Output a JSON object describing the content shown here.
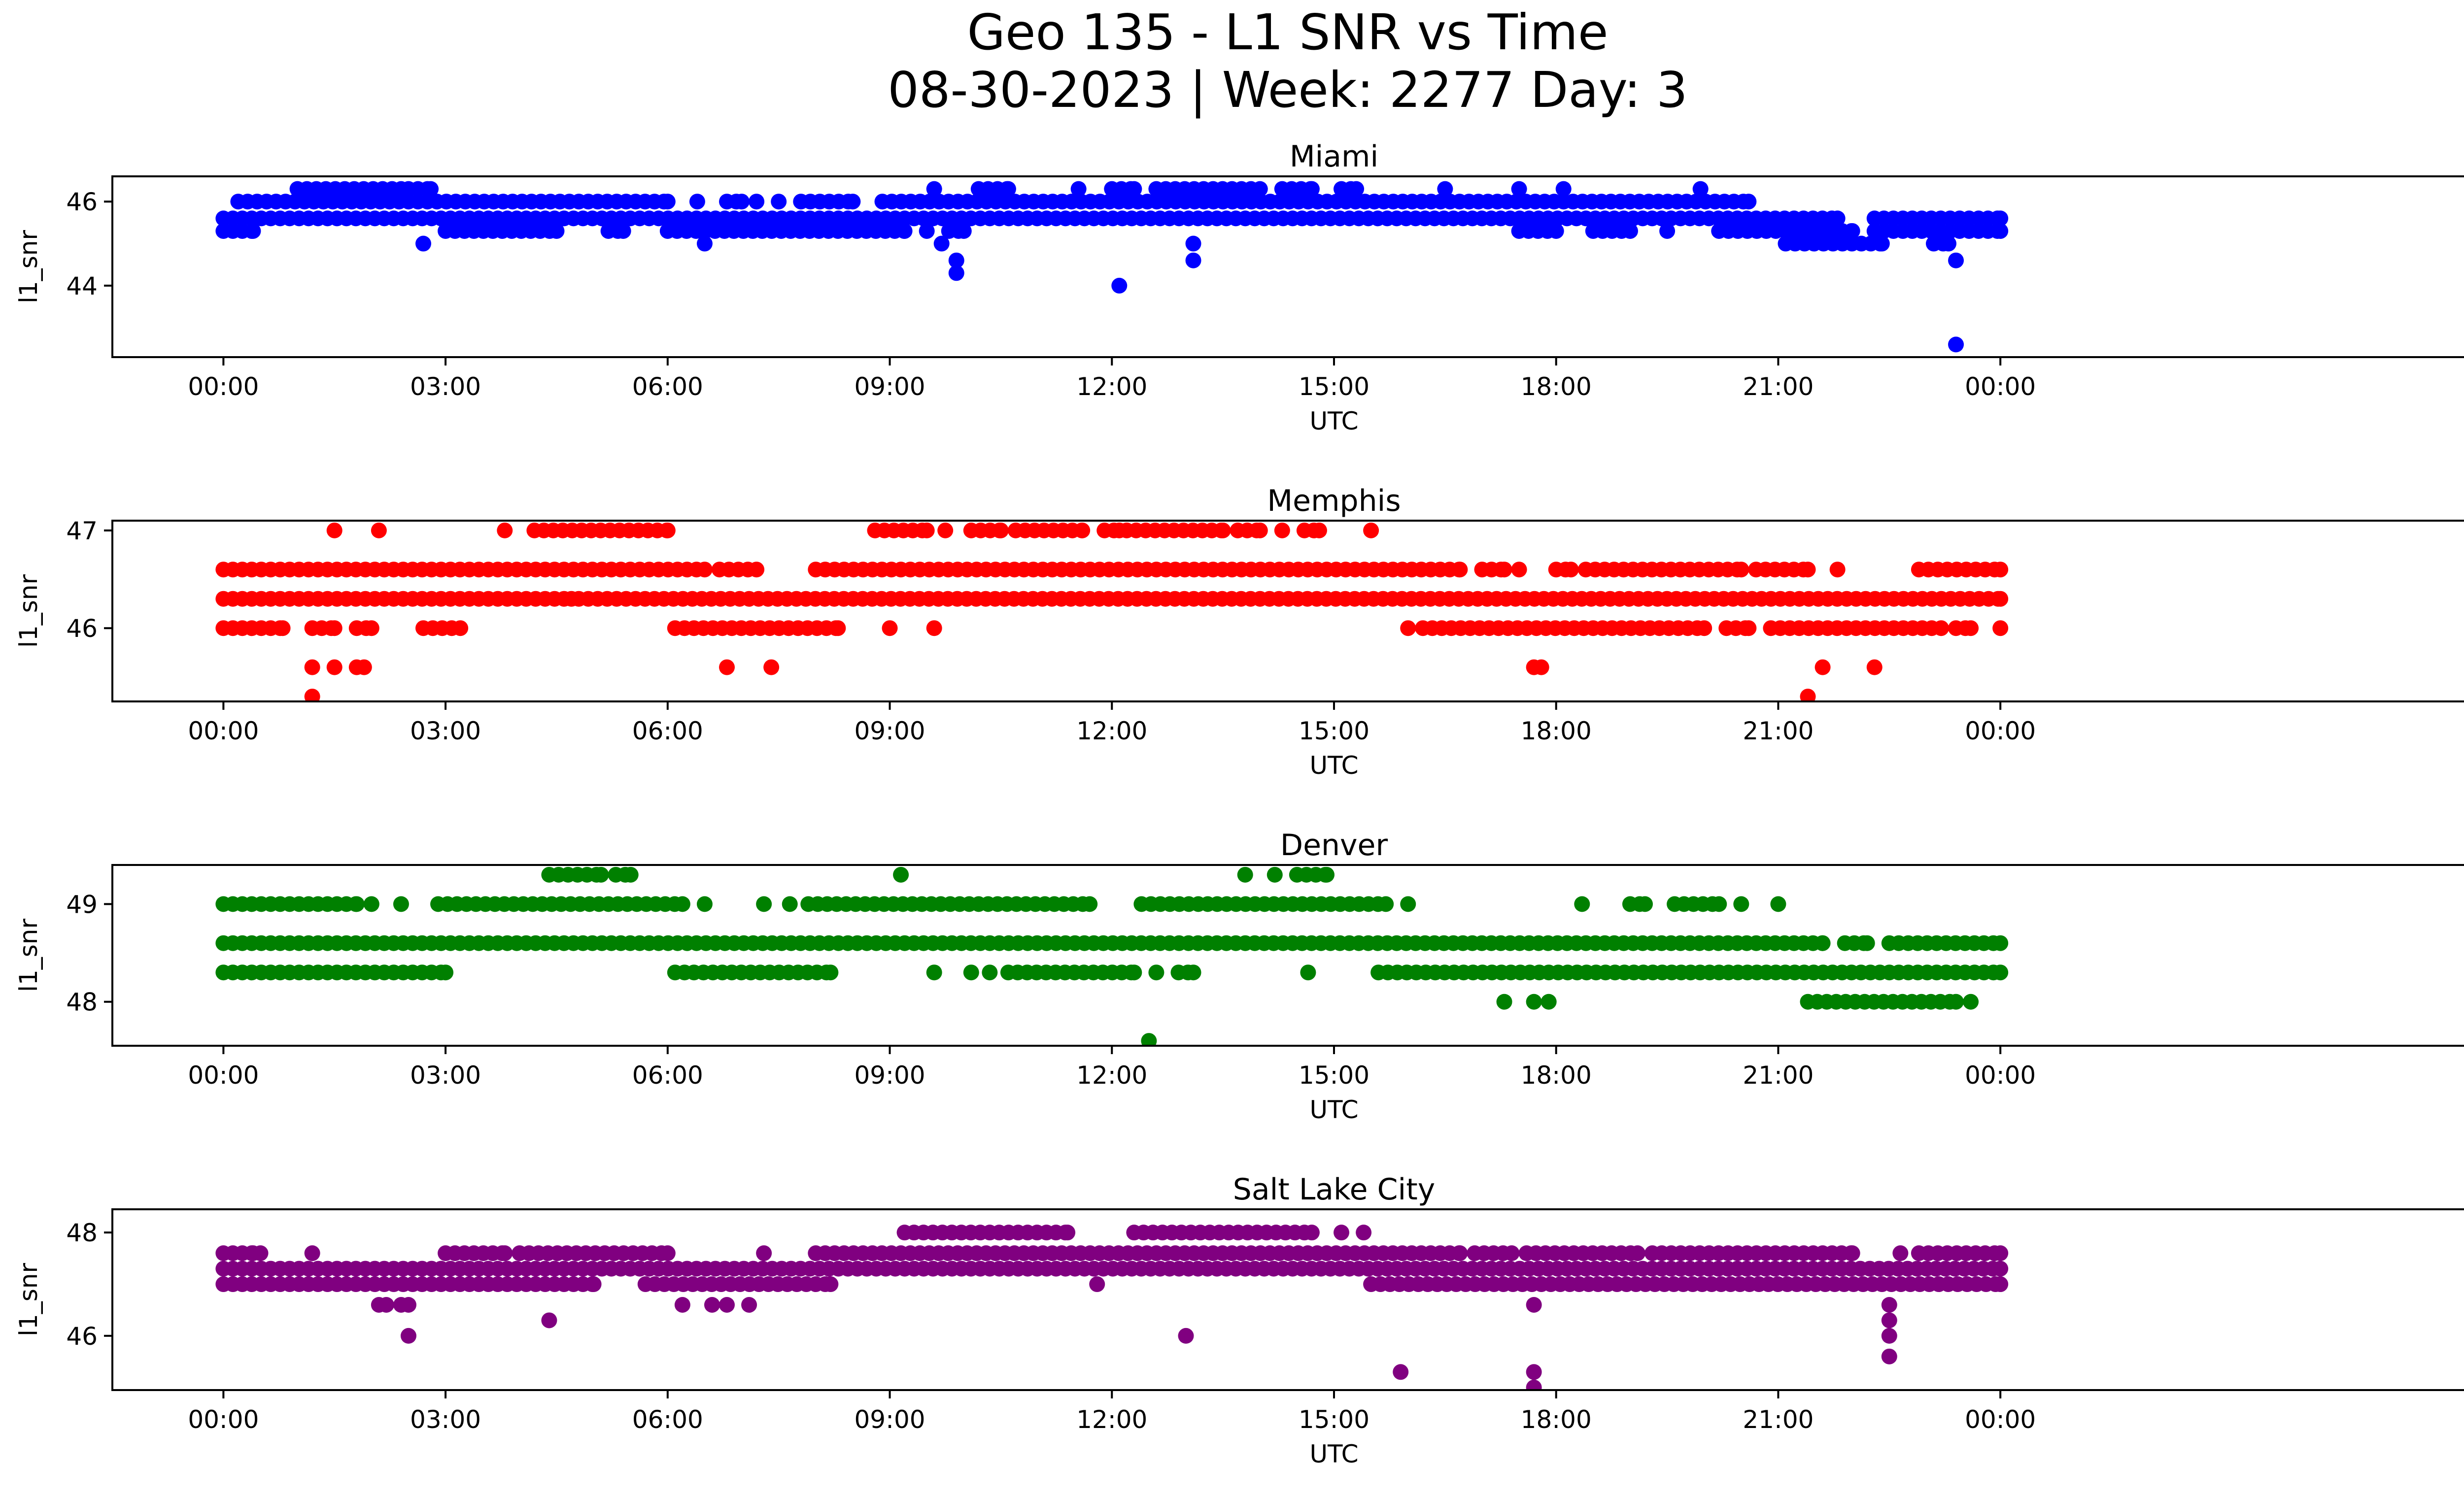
{
  "figure": {
    "title_line1": "Geo 135 - L1 SNR vs Time",
    "title_line2": "08-30-2023 | Week: 2277 Day: 3"
  },
  "chart_data": [
    {
      "type": "scatter",
      "title": "Miami",
      "xlabel": "UTC",
      "ylabel": "l1_snr",
      "color": "#0000ff",
      "xlim_hours": [
        -1.5,
        31.5
      ],
      "ylim": [
        42.3,
        46.6
      ],
      "yticks": [
        44,
        46
      ],
      "xtick_labels": [
        "00:00",
        "03:00",
        "06:00",
        "09:00",
        "12:00",
        "15:00",
        "18:00",
        "21:00",
        "00:00"
      ],
      "levels": [
        {
          "y": 46.3,
          "ranges": [
            [
              1.0,
              2.4
            ],
            [
              2.5,
              2.8
            ],
            [
              9.6,
              9.6
            ],
            [
              10.2,
              10.6
            ],
            [
              11.5,
              11.6
            ],
            [
              12.0,
              12.3
            ],
            [
              12.6,
              14.0
            ],
            [
              14.3,
              14.7
            ],
            [
              15.1,
              15.3
            ],
            [
              16.5,
              16.5
            ],
            [
              17.5,
              17.5
            ],
            [
              18.1,
              18.1
            ],
            [
              19.9,
              20.0
            ]
          ]
        },
        {
          "y": 46.0,
          "ranges": [
            [
              0.2,
              6.0
            ],
            [
              6.4,
              6.4
            ],
            [
              6.8,
              7.0
            ],
            [
              7.2,
              7.2
            ],
            [
              7.5,
              7.5
            ],
            [
              7.8,
              8.5
            ],
            [
              8.9,
              20.6
            ]
          ]
        },
        {
          "y": 45.6,
          "ranges": [
            [
              0.0,
              21.8
            ],
            [
              22.3,
              24.0
            ]
          ]
        },
        {
          "y": 45.3,
          "ranges": [
            [
              0.0,
              0.4
            ],
            [
              3.0,
              4.5
            ],
            [
              5.2,
              5.4
            ],
            [
              6.0,
              9.2
            ],
            [
              9.5,
              9.5
            ],
            [
              9.8,
              10.0
            ],
            [
              17.5,
              18.0
            ],
            [
              18.5,
              19.0
            ],
            [
              19.5,
              19.5
            ],
            [
              20.2,
              22.0
            ],
            [
              22.3,
              24.0
            ]
          ]
        },
        {
          "y": 45.0,
          "ranges": [
            [
              21.1,
              22.4
            ],
            [
              23.1,
              23.3
            ]
          ]
        }
      ],
      "outliers": [
        {
          "x": 2.7,
          "y": 45.0
        },
        {
          "x": 6.5,
          "y": 45.0
        },
        {
          "x": 9.7,
          "y": 45.0
        },
        {
          "x": 9.9,
          "y": 44.6
        },
        {
          "x": 9.9,
          "y": 44.3
        },
        {
          "x": 12.1,
          "y": 44.0
        },
        {
          "x": 13.1,
          "y": 45.0
        },
        {
          "x": 13.1,
          "y": 44.6
        },
        {
          "x": 23.4,
          "y": 44.6
        },
        {
          "x": 23.4,
          "y": 42.6
        }
      ]
    },
    {
      "type": "scatter",
      "title": "Memphis",
      "xlabel": "UTC",
      "ylabel": "l1_snr",
      "color": "#ff0000",
      "xlim_hours": [
        -1.5,
        31.5
      ],
      "ylim": [
        45.25,
        47.1
      ],
      "yticks": [
        46,
        47
      ],
      "xtick_labels": [
        "00:00",
        "03:00",
        "06:00",
        "09:00",
        "12:00",
        "15:00",
        "18:00",
        "21:00",
        "00:00"
      ],
      "levels": [
        {
          "y": 47.0,
          "ranges": [
            [
              1.5,
              1.5
            ],
            [
              2.1,
              2.1
            ],
            [
              3.8,
              3.8
            ],
            [
              4.2,
              6.0
            ],
            [
              8.8,
              9.5
            ],
            [
              9.7,
              9.8
            ],
            [
              10.1,
              10.5
            ],
            [
              10.7,
              11.6
            ],
            [
              11.9,
              12.1
            ],
            [
              12.2,
              13.5
            ],
            [
              13.7,
              14.0
            ],
            [
              14.3,
              14.3
            ],
            [
              14.6,
              14.8
            ],
            [
              15.5,
              15.5
            ]
          ]
        },
        {
          "y": 46.6,
          "ranges": [
            [
              0.0,
              6.5
            ],
            [
              6.7,
              7.2
            ],
            [
              8.0,
              16.7
            ],
            [
              17.0,
              17.3
            ],
            [
              17.5,
              17.5
            ],
            [
              18.0,
              18.2
            ],
            [
              18.4,
              20.5
            ],
            [
              20.7,
              21.4
            ],
            [
              21.8,
              21.8
            ],
            [
              22.9,
              24.0
            ]
          ]
        },
        {
          "y": 46.3,
          "ranges": [
            [
              0.0,
              4.7
            ],
            [
              4.8,
              24.0
            ]
          ]
        },
        {
          "y": 46.0,
          "ranges": [
            [
              0.0,
              0.8
            ],
            [
              1.2,
              1.5
            ],
            [
              1.8,
              2.0
            ],
            [
              2.7,
              3.2
            ],
            [
              6.1,
              8.3
            ],
            [
              9.0,
              9.0
            ],
            [
              9.6,
              9.6
            ],
            [
              16.0,
              16.0
            ],
            [
              16.2,
              20.0
            ],
            [
              20.3,
              20.6
            ],
            [
              20.9,
              23.2
            ],
            [
              23.4,
              23.6
            ],
            [
              24.0,
              24.0
            ]
          ]
        }
      ],
      "outliers": [
        {
          "x": 1.2,
          "y": 45.6
        },
        {
          "x": 1.5,
          "y": 45.6
        },
        {
          "x": 1.8,
          "y": 45.6
        },
        {
          "x": 1.9,
          "y": 45.6
        },
        {
          "x": 6.8,
          "y": 45.6
        },
        {
          "x": 7.4,
          "y": 45.6
        },
        {
          "x": 17.7,
          "y": 45.6
        },
        {
          "x": 17.8,
          "y": 45.6
        },
        {
          "x": 21.6,
          "y": 45.6
        },
        {
          "x": 22.3,
          "y": 45.6
        },
        {
          "x": 1.2,
          "y": 45.3
        },
        {
          "x": 21.4,
          "y": 45.3
        }
      ]
    },
    {
      "type": "scatter",
      "title": "Denver",
      "xlabel": "UTC",
      "ylabel": "l1_snr",
      "color": "#008000",
      "xlim_hours": [
        -1.5,
        31.5
      ],
      "ylim": [
        47.55,
        49.4
      ],
      "yticks": [
        48,
        49
      ],
      "xtick_labels": [
        "00:00",
        "03:00",
        "06:00",
        "09:00",
        "12:00",
        "15:00",
        "18:00",
        "21:00",
        "00:00"
      ],
      "levels": [
        {
          "y": 49.3,
          "ranges": [
            [
              4.4,
              5.1
            ],
            [
              5.3,
              5.5
            ],
            [
              9.1,
              9.2
            ],
            [
              13.8,
              13.8
            ],
            [
              14.2,
              14.2
            ],
            [
              14.5,
              14.9
            ]
          ]
        },
        {
          "y": 49.0,
          "ranges": [
            [
              0.0,
              1.8
            ],
            [
              2.0,
              2.0
            ],
            [
              2.4,
              2.4
            ],
            [
              2.9,
              6.2
            ],
            [
              6.5,
              6.5
            ],
            [
              7.3,
              7.3
            ],
            [
              7.6,
              7.7
            ],
            [
              7.9,
              11.7
            ],
            [
              12.4,
              15.7
            ],
            [
              16.0,
              16.0
            ],
            [
              18.3,
              18.4
            ],
            [
              19.0,
              19.2
            ],
            [
              19.6,
              20.2
            ],
            [
              20.5,
              20.5
            ],
            [
              21.0,
              21.0
            ]
          ]
        },
        {
          "y": 48.6,
          "ranges": [
            [
              0.0,
              21.6
            ],
            [
              21.9,
              22.2
            ],
            [
              22.5,
              24.0
            ]
          ]
        },
        {
          "y": 48.3,
          "ranges": [
            [
              0.0,
              3.0
            ],
            [
              6.1,
              8.2
            ],
            [
              9.6,
              9.6
            ],
            [
              10.1,
              10.1
            ],
            [
              10.3,
              10.4
            ],
            [
              10.6,
              12.3
            ],
            [
              12.6,
              12.6
            ],
            [
              12.9,
              13.1
            ],
            [
              14.6,
              14.7
            ],
            [
              15.6,
              24.0
            ]
          ]
        },
        {
          "y": 48.0,
          "ranges": [
            [
              17.3,
              17.3
            ],
            [
              17.7,
              17.7
            ],
            [
              17.9,
              17.9
            ],
            [
              21.4,
              23.4
            ],
            [
              23.6,
              23.6
            ]
          ]
        }
      ],
      "outliers": [
        {
          "x": 12.5,
          "y": 47.6
        }
      ]
    },
    {
      "type": "scatter",
      "title": "Salt Lake City",
      "xlabel": "UTC",
      "ylabel": "l1_snr",
      "color": "#800080",
      "xlim_hours": [
        -1.5,
        31.5
      ],
      "ylim": [
        44.95,
        48.45
      ],
      "yticks": [
        46,
        48
      ],
      "xtick_labels": [
        "00:00",
        "03:00",
        "06:00",
        "09:00",
        "12:00",
        "15:00",
        "18:00",
        "21:00",
        "00:00"
      ],
      "levels": [
        {
          "y": 48.0,
          "ranges": [
            [
              9.2,
              11.4
            ],
            [
              12.3,
              14.7
            ],
            [
              15.1,
              15.1
            ],
            [
              15.4,
              15.4
            ]
          ]
        },
        {
          "y": 47.6,
          "ranges": [
            [
              0.0,
              0.4
            ],
            [
              0.5,
              0.5
            ],
            [
              1.2,
              1.2
            ],
            [
              3.0,
              3.8
            ],
            [
              4.0,
              6.0
            ],
            [
              7.3,
              7.3
            ],
            [
              8.0,
              16.7
            ],
            [
              16.9,
              17.4
            ],
            [
              17.6,
              19.1
            ],
            [
              19.3,
              22.0
            ],
            [
              22.6,
              22.7
            ],
            [
              22.9,
              24.0
            ]
          ]
        },
        {
          "y": 47.3,
          "ranges": [
            [
              0.0,
              24.0
            ]
          ]
        },
        {
          "y": 47.0,
          "ranges": [
            [
              0.0,
              5.0
            ],
            [
              5.7,
              8.2
            ],
            [
              11.8,
              11.8
            ],
            [
              15.5,
              24.0
            ]
          ]
        }
      ],
      "outliers": [
        {
          "x": 2.1,
          "y": 46.6
        },
        {
          "x": 2.2,
          "y": 46.6
        },
        {
          "x": 2.4,
          "y": 46.6
        },
        {
          "x": 2.5,
          "y": 46.6
        },
        {
          "x": 6.2,
          "y": 46.6
        },
        {
          "x": 6.6,
          "y": 46.6
        },
        {
          "x": 6.8,
          "y": 46.6
        },
        {
          "x": 7.1,
          "y": 46.6
        },
        {
          "x": 17.7,
          "y": 46.6
        },
        {
          "x": 22.5,
          "y": 46.6
        },
        {
          "x": 2.5,
          "y": 46.0
        },
        {
          "x": 4.4,
          "y": 46.3
        },
        {
          "x": 22.5,
          "y": 46.3
        },
        {
          "x": 13.0,
          "y": 46.0
        },
        {
          "x": 22.5,
          "y": 46.0
        },
        {
          "x": 22.5,
          "y": 45.6
        },
        {
          "x": 15.9,
          "y": 45.3
        },
        {
          "x": 17.7,
          "y": 45.3
        },
        {
          "x": 17.7,
          "y": 45.0
        }
      ]
    }
  ]
}
